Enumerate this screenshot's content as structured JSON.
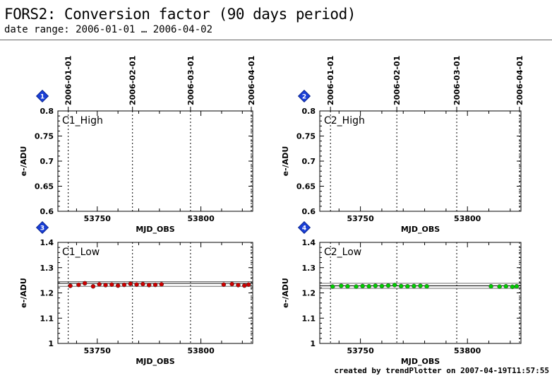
{
  "header": {
    "title": "FORS2: Conversion factor (90 days period)",
    "subtitle": "date range: 2006-01-01 … 2006-04-02"
  },
  "footer": {
    "credit": "created by trendPlotter on 2007-04-19T11:57:55"
  },
  "chart_data": [
    {
      "type": "scatter",
      "panel_number": "1",
      "label": "C1_High",
      "xlabel": "MJD_OBS",
      "ylabel": "e-/ADU",
      "xlim": [
        53731,
        53825
      ],
      "xticks": [
        53750,
        53800
      ],
      "ylim": [
        0.6,
        0.8
      ],
      "yticks": [
        "0.6",
        "0.65",
        "0.7",
        "0.75",
        "0.8"
      ],
      "date_ticks": [
        {
          "label": "2006-01-01",
          "mjd": 53736
        },
        {
          "label": "2006-02-01",
          "mjd": 53767
        },
        {
          "label": "2006-03-01",
          "mjd": 53795
        },
        {
          "label": "2006-04-01",
          "mjd": 53826
        }
      ],
      "points": [],
      "point_color": "#cc0000"
    },
    {
      "type": "scatter",
      "panel_number": "2",
      "label": "C2_High",
      "xlabel": "MJD_OBS",
      "ylabel": "e-/ADU",
      "xlim": [
        53731,
        53825
      ],
      "xticks": [
        53750,
        53800
      ],
      "ylim": [
        0.6,
        0.8
      ],
      "yticks": [
        "0.6",
        "0.65",
        "0.7",
        "0.75",
        "0.8"
      ],
      "date_ticks": [
        {
          "label": "2006-01-01",
          "mjd": 53736
        },
        {
          "label": "2006-02-01",
          "mjd": 53767
        },
        {
          "label": "2006-03-01",
          "mjd": 53795
        },
        {
          "label": "2006-04-01",
          "mjd": 53826
        }
      ],
      "points": [],
      "point_color": "#00cc00"
    },
    {
      "type": "scatter",
      "panel_number": "3",
      "label": "C1_Low",
      "xlabel": "MJD_OBS",
      "ylabel": "e-/ADU",
      "xlim": [
        53731,
        53825
      ],
      "xticks": [
        53750,
        53800
      ],
      "ylim": [
        1.0,
        1.4
      ],
      "yticks": [
        "1",
        "1.1",
        "1.2",
        "1.3",
        "1.4"
      ],
      "date_ticks": [
        {
          "label": "2006-01-01",
          "mjd": 53736
        },
        {
          "label": "2006-02-01",
          "mjd": 53767
        },
        {
          "label": "2006-03-01",
          "mjd": 53795
        },
        {
          "label": "2006-04-01",
          "mjd": 53826
        }
      ],
      "ref_lines": [
        1.238,
        1.226,
        1.245
      ],
      "point_color": "#cc0000",
      "points": [
        {
          "x": 53737,
          "y": 1.228
        },
        {
          "x": 53741,
          "y": 1.232
        },
        {
          "x": 53744,
          "y": 1.238
        },
        {
          "x": 53748,
          "y": 1.226
        },
        {
          "x": 53751,
          "y": 1.234
        },
        {
          "x": 53754,
          "y": 1.231
        },
        {
          "x": 53757,
          "y": 1.233
        },
        {
          "x": 53760,
          "y": 1.229
        },
        {
          "x": 53763,
          "y": 1.232
        },
        {
          "x": 53766,
          "y": 1.236
        },
        {
          "x": 53769,
          "y": 1.233
        },
        {
          "x": 53772,
          "y": 1.235
        },
        {
          "x": 53775,
          "y": 1.231
        },
        {
          "x": 53778,
          "y": 1.232
        },
        {
          "x": 53781,
          "y": 1.234
        },
        {
          "x": 53811,
          "y": 1.233
        },
        {
          "x": 53815,
          "y": 1.235
        },
        {
          "x": 53818,
          "y": 1.231
        },
        {
          "x": 53821,
          "y": 1.229
        },
        {
          "x": 53823,
          "y": 1.233
        }
      ]
    },
    {
      "type": "scatter",
      "panel_number": "4",
      "label": "C2_Low",
      "xlabel": "MJD_OBS",
      "ylabel": "e-/ADU",
      "xlim": [
        53731,
        53825
      ],
      "xticks": [
        53750,
        53800
      ],
      "ylim": [
        1.0,
        1.4
      ],
      "yticks": [
        "1",
        "1.1",
        "1.2",
        "1.3",
        "1.4"
      ],
      "date_ticks": [
        {
          "label": "2006-01-01",
          "mjd": 53736
        },
        {
          "label": "2006-02-01",
          "mjd": 53767
        },
        {
          "label": "2006-03-01",
          "mjd": 53795
        },
        {
          "label": "2006-04-01",
          "mjd": 53826
        }
      ],
      "ref_lines": [
        1.228,
        1.218,
        1.238
      ],
      "point_color": "#00cc00",
      "points": [
        {
          "x": 53737,
          "y": 1.225
        },
        {
          "x": 53741,
          "y": 1.228
        },
        {
          "x": 53744,
          "y": 1.226
        },
        {
          "x": 53748,
          "y": 1.225
        },
        {
          "x": 53751,
          "y": 1.227
        },
        {
          "x": 53754,
          "y": 1.226
        },
        {
          "x": 53757,
          "y": 1.228
        },
        {
          "x": 53760,
          "y": 1.227
        },
        {
          "x": 53763,
          "y": 1.229
        },
        {
          "x": 53766,
          "y": 1.231
        },
        {
          "x": 53769,
          "y": 1.227
        },
        {
          "x": 53772,
          "y": 1.226
        },
        {
          "x": 53775,
          "y": 1.227
        },
        {
          "x": 53778,
          "y": 1.228
        },
        {
          "x": 53781,
          "y": 1.226
        },
        {
          "x": 53811,
          "y": 1.226
        },
        {
          "x": 53815,
          "y": 1.225
        },
        {
          "x": 53818,
          "y": 1.226
        },
        {
          "x": 53821,
          "y": 1.224
        },
        {
          "x": 53823,
          "y": 1.226
        }
      ]
    }
  ]
}
